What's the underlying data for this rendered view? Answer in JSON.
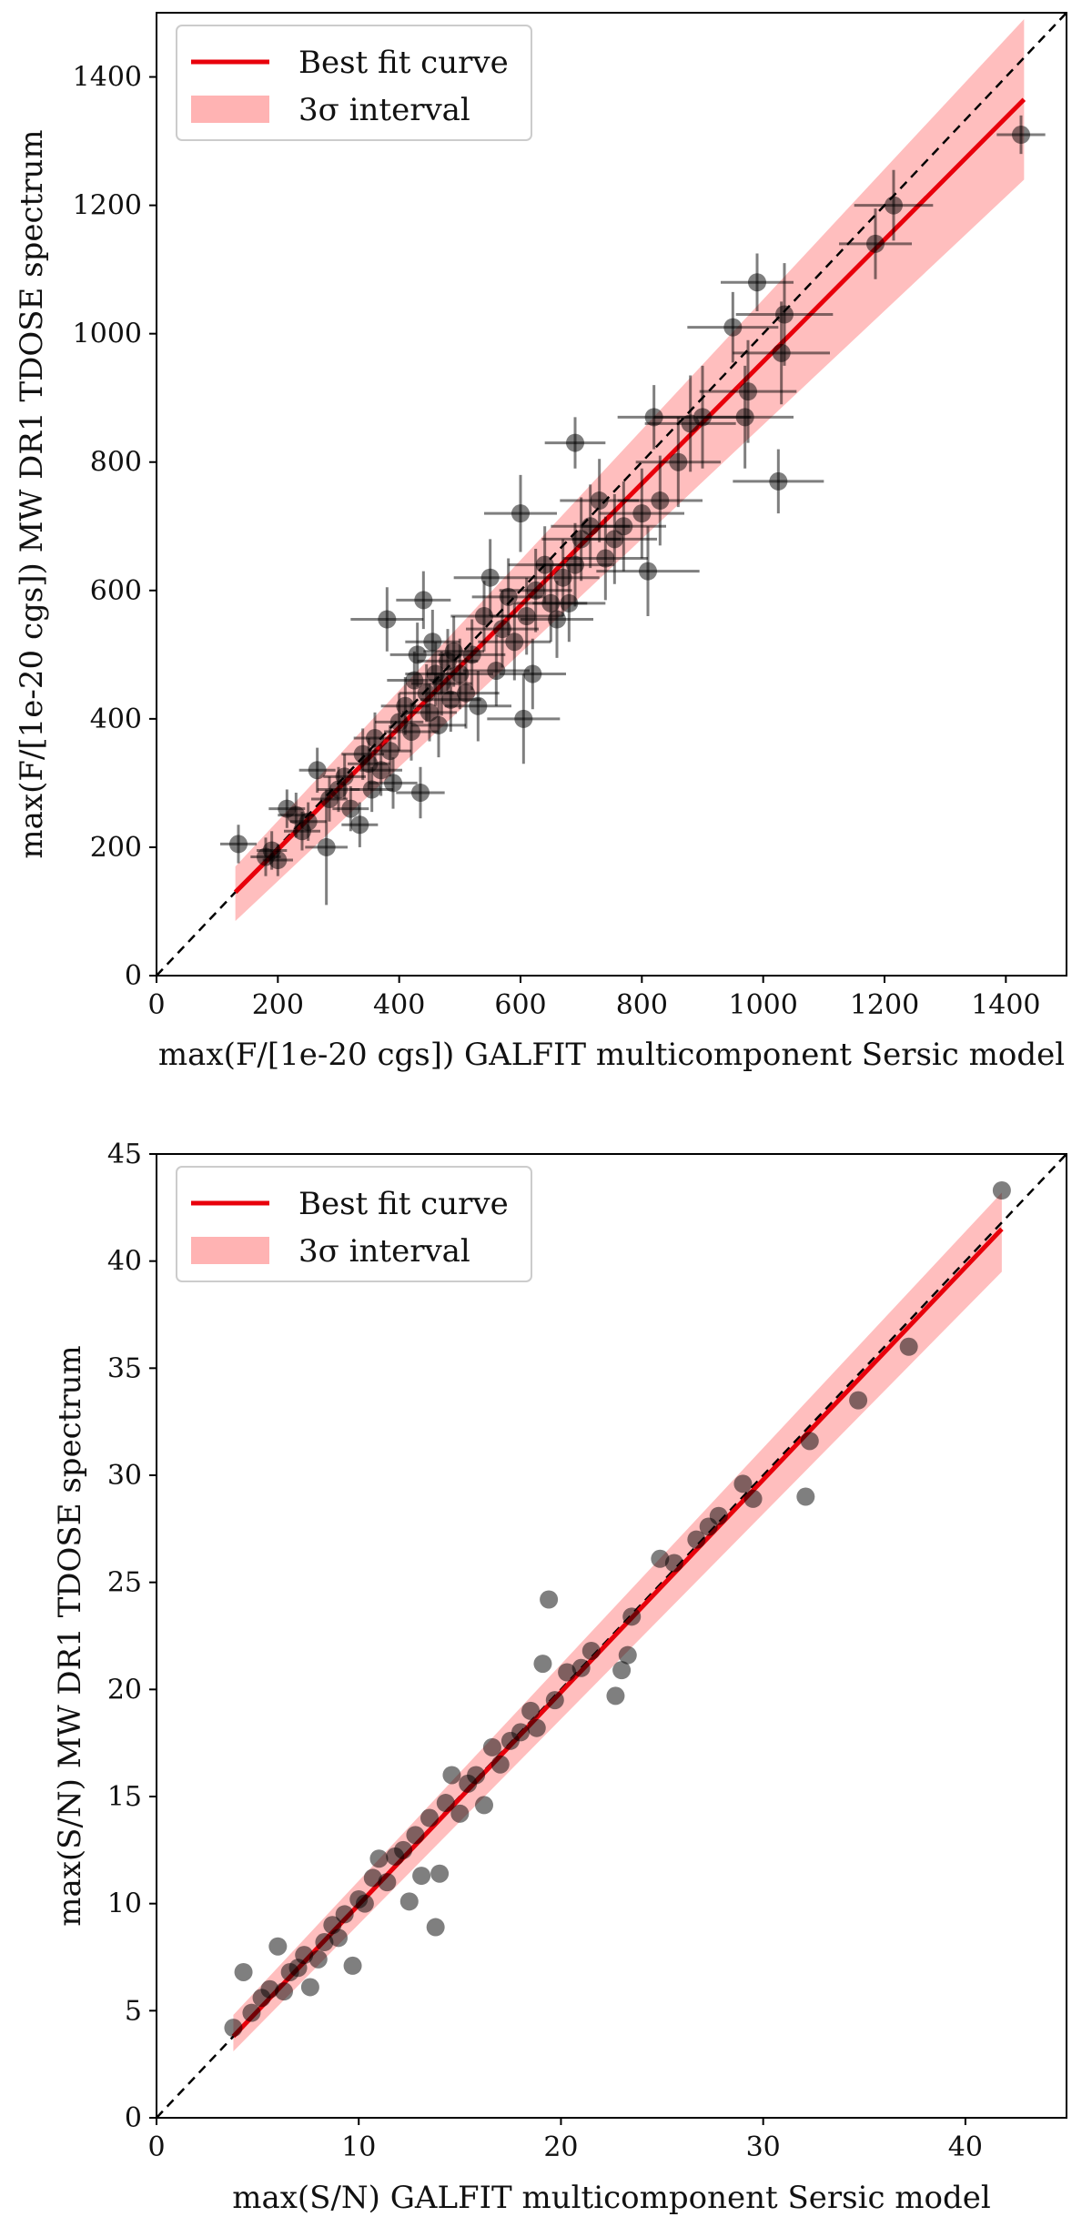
{
  "chart_data": [
    {
      "type": "scatter",
      "xlabel": "max(F/[1e-20 cgs]) GALFIT multicomponent Sersic model",
      "ylabel": "max(F/[1e-20 cgs]) MW DR1 TDOSE spectrum",
      "xlim": [
        0,
        1500
      ],
      "ylim": [
        0,
        1500
      ],
      "xticks": [
        0,
        200,
        400,
        600,
        800,
        1000,
        1200,
        1400
      ],
      "yticks": [
        0,
        200,
        400,
        600,
        800,
        1000,
        1200,
        1400
      ],
      "legend": {
        "position": "top-left",
        "entries": [
          {
            "label": "Best fit curve",
            "kind": "line",
            "color": "#e8000b"
          },
          {
            "label": "3σ interval",
            "kind": "band",
            "color": "#ffb3b3"
          }
        ]
      },
      "fit": {
        "x_start": 130,
        "y_start": 130,
        "x_end": 1430,
        "y_end": 1365
      },
      "band": {
        "lower_start": 85,
        "upper_start": 170,
        "lower_end": 1240,
        "upper_end": 1490
      },
      "points": [
        {
          "x": 135,
          "y": 205,
          "xerr": 30,
          "yerr": 30
        },
        {
          "x": 180,
          "y": 185,
          "xerr": 25,
          "yerr": 30
        },
        {
          "x": 190,
          "y": 195,
          "xerr": 25,
          "yerr": 30
        },
        {
          "x": 200,
          "y": 180,
          "xerr": 25,
          "yerr": 25
        },
        {
          "x": 215,
          "y": 260,
          "xerr": 30,
          "yerr": 30
        },
        {
          "x": 230,
          "y": 250,
          "xerr": 30,
          "yerr": 35
        },
        {
          "x": 240,
          "y": 225,
          "xerr": 30,
          "yerr": 30
        },
        {
          "x": 250,
          "y": 240,
          "xerr": 30,
          "yerr": 30
        },
        {
          "x": 265,
          "y": 320,
          "xerr": 30,
          "yerr": 35
        },
        {
          "x": 280,
          "y": 200,
          "xerr": 35,
          "yerr": 90
        },
        {
          "x": 285,
          "y": 275,
          "xerr": 30,
          "yerr": 35
        },
        {
          "x": 300,
          "y": 290,
          "xerr": 35,
          "yerr": 35
        },
        {
          "x": 310,
          "y": 310,
          "xerr": 35,
          "yerr": 35
        },
        {
          "x": 320,
          "y": 260,
          "xerr": 30,
          "yerr": 35
        },
        {
          "x": 335,
          "y": 235,
          "xerr": 30,
          "yerr": 35
        },
        {
          "x": 340,
          "y": 345,
          "xerr": 35,
          "yerr": 40
        },
        {
          "x": 350,
          "y": 330,
          "xerr": 35,
          "yerr": 40
        },
        {
          "x": 355,
          "y": 290,
          "xerr": 35,
          "yerr": 35
        },
        {
          "x": 360,
          "y": 370,
          "xerr": 35,
          "yerr": 40
        },
        {
          "x": 370,
          "y": 320,
          "xerr": 35,
          "yerr": 40
        },
        {
          "x": 380,
          "y": 555,
          "xerr": 60,
          "yerr": 50
        },
        {
          "x": 385,
          "y": 350,
          "xerr": 35,
          "yerr": 40
        },
        {
          "x": 390,
          "y": 300,
          "xerr": 40,
          "yerr": 40
        },
        {
          "x": 400,
          "y": 395,
          "xerr": 40,
          "yerr": 45
        },
        {
          "x": 410,
          "y": 420,
          "xerr": 40,
          "yerr": 45
        },
        {
          "x": 420,
          "y": 380,
          "xerr": 45,
          "yerr": 45
        },
        {
          "x": 425,
          "y": 460,
          "xerr": 45,
          "yerr": 45
        },
        {
          "x": 430,
          "y": 500,
          "xerr": 45,
          "yerr": 50
        },
        {
          "x": 435,
          "y": 285,
          "xerr": 40,
          "yerr": 40
        },
        {
          "x": 440,
          "y": 585,
          "xerr": 45,
          "yerr": 45
        },
        {
          "x": 445,
          "y": 440,
          "xerr": 45,
          "yerr": 45
        },
        {
          "x": 450,
          "y": 410,
          "xerr": 45,
          "yerr": 45
        },
        {
          "x": 455,
          "y": 520,
          "xerr": 45,
          "yerr": 50
        },
        {
          "x": 460,
          "y": 470,
          "xerr": 50,
          "yerr": 50
        },
        {
          "x": 465,
          "y": 390,
          "xerr": 45,
          "yerr": 50
        },
        {
          "x": 470,
          "y": 455,
          "xerr": 50,
          "yerr": 50
        },
        {
          "x": 480,
          "y": 490,
          "xerr": 50,
          "yerr": 50
        },
        {
          "x": 485,
          "y": 430,
          "xerr": 50,
          "yerr": 50
        },
        {
          "x": 490,
          "y": 505,
          "xerr": 50,
          "yerr": 55
        },
        {
          "x": 500,
          "y": 470,
          "xerr": 55,
          "yerr": 55
        },
        {
          "x": 510,
          "y": 440,
          "xerr": 55,
          "yerr": 55
        },
        {
          "x": 520,
          "y": 500,
          "xerr": 55,
          "yerr": 55
        },
        {
          "x": 530,
          "y": 420,
          "xerr": 55,
          "yerr": 55
        },
        {
          "x": 540,
          "y": 560,
          "xerr": 55,
          "yerr": 55
        },
        {
          "x": 550,
          "y": 620,
          "xerr": 60,
          "yerr": 60
        },
        {
          "x": 560,
          "y": 475,
          "xerr": 55,
          "yerr": 55
        },
        {
          "x": 570,
          "y": 540,
          "xerr": 60,
          "yerr": 60
        },
        {
          "x": 580,
          "y": 590,
          "xerr": 60,
          "yerr": 60
        },
        {
          "x": 590,
          "y": 520,
          "xerr": 60,
          "yerr": 60
        },
        {
          "x": 600,
          "y": 720,
          "xerr": 60,
          "yerr": 60
        },
        {
          "x": 605,
          "y": 400,
          "xerr": 60,
          "yerr": 70
        },
        {
          "x": 610,
          "y": 560,
          "xerr": 60,
          "yerr": 60
        },
        {
          "x": 620,
          "y": 470,
          "xerr": 55,
          "yerr": 55
        },
        {
          "x": 625,
          "y": 600,
          "xerr": 60,
          "yerr": 65
        },
        {
          "x": 640,
          "y": 640,
          "xerr": 60,
          "yerr": 60
        },
        {
          "x": 650,
          "y": 580,
          "xerr": 60,
          "yerr": 60
        },
        {
          "x": 660,
          "y": 555,
          "xerr": 60,
          "yerr": 60
        },
        {
          "x": 670,
          "y": 620,
          "xerr": 60,
          "yerr": 60
        },
        {
          "x": 680,
          "y": 580,
          "xerr": 60,
          "yerr": 60
        },
        {
          "x": 690,
          "y": 640,
          "xerr": 65,
          "yerr": 65
        },
        {
          "x": 690,
          "y": 830,
          "xerr": 50,
          "yerr": 40
        },
        {
          "x": 700,
          "y": 680,
          "xerr": 65,
          "yerr": 65
        },
        {
          "x": 715,
          "y": 700,
          "xerr": 65,
          "yerr": 65
        },
        {
          "x": 730,
          "y": 740,
          "xerr": 65,
          "yerr": 65
        },
        {
          "x": 740,
          "y": 650,
          "xerr": 70,
          "yerr": 65
        },
        {
          "x": 755,
          "y": 680,
          "xerr": 70,
          "yerr": 70
        },
        {
          "x": 770,
          "y": 700,
          "xerr": 70,
          "yerr": 70
        },
        {
          "x": 800,
          "y": 720,
          "xerr": 70,
          "yerr": 70
        },
        {
          "x": 810,
          "y": 630,
          "xerr": 85,
          "yerr": 70
        },
        {
          "x": 820,
          "y": 870,
          "xerr": 60,
          "yerr": 50
        },
        {
          "x": 830,
          "y": 740,
          "xerr": 70,
          "yerr": 70
        },
        {
          "x": 860,
          "y": 800,
          "xerr": 70,
          "yerr": 70
        },
        {
          "x": 880,
          "y": 860,
          "xerr": 75,
          "yerr": 75
        },
        {
          "x": 900,
          "y": 870,
          "xerr": 80,
          "yerr": 80
        },
        {
          "x": 950,
          "y": 1010,
          "xerr": 75,
          "yerr": 55
        },
        {
          "x": 970,
          "y": 870,
          "xerr": 80,
          "yerr": 80
        },
        {
          "x": 975,
          "y": 910,
          "xerr": 80,
          "yerr": 80
        },
        {
          "x": 990,
          "y": 1080,
          "xerr": 60,
          "yerr": 45
        },
        {
          "x": 1025,
          "y": 770,
          "xerr": 75,
          "yerr": 50
        },
        {
          "x": 1030,
          "y": 970,
          "xerr": 80,
          "yerr": 80
        },
        {
          "x": 1035,
          "y": 1030,
          "xerr": 80,
          "yerr": 80
        },
        {
          "x": 1185,
          "y": 1140,
          "xerr": 60,
          "yerr": 55
        },
        {
          "x": 1215,
          "y": 1200,
          "xerr": 65,
          "yerr": 55
        },
        {
          "x": 1425,
          "y": 1310,
          "xerr": 40,
          "yerr": 30
        }
      ]
    },
    {
      "type": "scatter",
      "xlabel": "max(S/N) GALFIT multicomponent Sersic model",
      "ylabel": "max(S/N) MW DR1 TDOSE spectrum",
      "xlim": [
        0,
        45
      ],
      "ylim": [
        0,
        45
      ],
      "xticks": [
        0,
        10,
        20,
        30,
        40
      ],
      "yticks": [
        0,
        5,
        10,
        15,
        20,
        25,
        30,
        35,
        40,
        45
      ],
      "legend": {
        "position": "top-left",
        "entries": [
          {
            "label": "Best fit curve",
            "kind": "line",
            "color": "#e8000b"
          },
          {
            "label": "3σ interval",
            "kind": "band",
            "color": "#ffb3b3"
          }
        ]
      },
      "fit": {
        "x_start": 3.8,
        "y_start": 3.8,
        "x_end": 41.8,
        "y_end": 41.5
      },
      "band": {
        "lower_start": 3.1,
        "upper_start": 4.8,
        "lower_end": 39.5,
        "upper_end": 43.2
      },
      "points": [
        {
          "x": 3.8,
          "y": 4.2
        },
        {
          "x": 4.3,
          "y": 6.8
        },
        {
          "x": 4.7,
          "y": 4.9
        },
        {
          "x": 5.2,
          "y": 5.6
        },
        {
          "x": 5.6,
          "y": 6.0
        },
        {
          "x": 6.0,
          "y": 8.0
        },
        {
          "x": 6.3,
          "y": 5.9
        },
        {
          "x": 6.6,
          "y": 6.8
        },
        {
          "x": 7.0,
          "y": 7.0
        },
        {
          "x": 7.3,
          "y": 7.6
        },
        {
          "x": 7.6,
          "y": 6.1
        },
        {
          "x": 8.0,
          "y": 7.4
        },
        {
          "x": 8.3,
          "y": 8.2
        },
        {
          "x": 8.7,
          "y": 9.0
        },
        {
          "x": 9.0,
          "y": 8.4
        },
        {
          "x": 9.3,
          "y": 9.5
        },
        {
          "x": 9.7,
          "y": 7.1
        },
        {
          "x": 10.0,
          "y": 10.2
        },
        {
          "x": 10.3,
          "y": 10.0
        },
        {
          "x": 10.7,
          "y": 11.2
        },
        {
          "x": 11.0,
          "y": 12.1
        },
        {
          "x": 11.4,
          "y": 11.0
        },
        {
          "x": 11.8,
          "y": 12.2
        },
        {
          "x": 12.2,
          "y": 12.5
        },
        {
          "x": 12.5,
          "y": 10.1
        },
        {
          "x": 12.8,
          "y": 13.2
        },
        {
          "x": 13.1,
          "y": 11.3
        },
        {
          "x": 13.5,
          "y": 14.0
        },
        {
          "x": 13.8,
          "y": 8.9
        },
        {
          "x": 14.0,
          "y": 11.4
        },
        {
          "x": 14.3,
          "y": 14.7
        },
        {
          "x": 14.6,
          "y": 16.0
        },
        {
          "x": 15.0,
          "y": 14.2
        },
        {
          "x": 15.4,
          "y": 15.6
        },
        {
          "x": 15.8,
          "y": 16.0
        },
        {
          "x": 16.2,
          "y": 14.6
        },
        {
          "x": 16.6,
          "y": 17.3
        },
        {
          "x": 17.0,
          "y": 16.5
        },
        {
          "x": 17.5,
          "y": 17.6
        },
        {
          "x": 18.0,
          "y": 18.0
        },
        {
          "x": 18.5,
          "y": 19.0
        },
        {
          "x": 18.8,
          "y": 18.2
        },
        {
          "x": 19.1,
          "y": 21.2
        },
        {
          "x": 19.4,
          "y": 24.2
        },
        {
          "x": 19.7,
          "y": 19.5
        },
        {
          "x": 20.3,
          "y": 20.8
        },
        {
          "x": 21.0,
          "y": 21.0
        },
        {
          "x": 21.5,
          "y": 21.8
        },
        {
          "x": 22.7,
          "y": 19.7
        },
        {
          "x": 23.0,
          "y": 20.9
        },
        {
          "x": 23.3,
          "y": 21.6
        },
        {
          "x": 23.5,
          "y": 23.4
        },
        {
          "x": 24.9,
          "y": 26.1
        },
        {
          "x": 25.6,
          "y": 25.9
        },
        {
          "x": 26.7,
          "y": 27.0
        },
        {
          "x": 27.3,
          "y": 27.6
        },
        {
          "x": 27.8,
          "y": 28.1
        },
        {
          "x": 29.0,
          "y": 29.6
        },
        {
          "x": 29.5,
          "y": 28.9
        },
        {
          "x": 32.1,
          "y": 29.0
        },
        {
          "x": 32.3,
          "y": 31.6
        },
        {
          "x": 34.7,
          "y": 33.5
        },
        {
          "x": 37.2,
          "y": 36.0
        },
        {
          "x": 41.8,
          "y": 43.3
        }
      ]
    }
  ]
}
